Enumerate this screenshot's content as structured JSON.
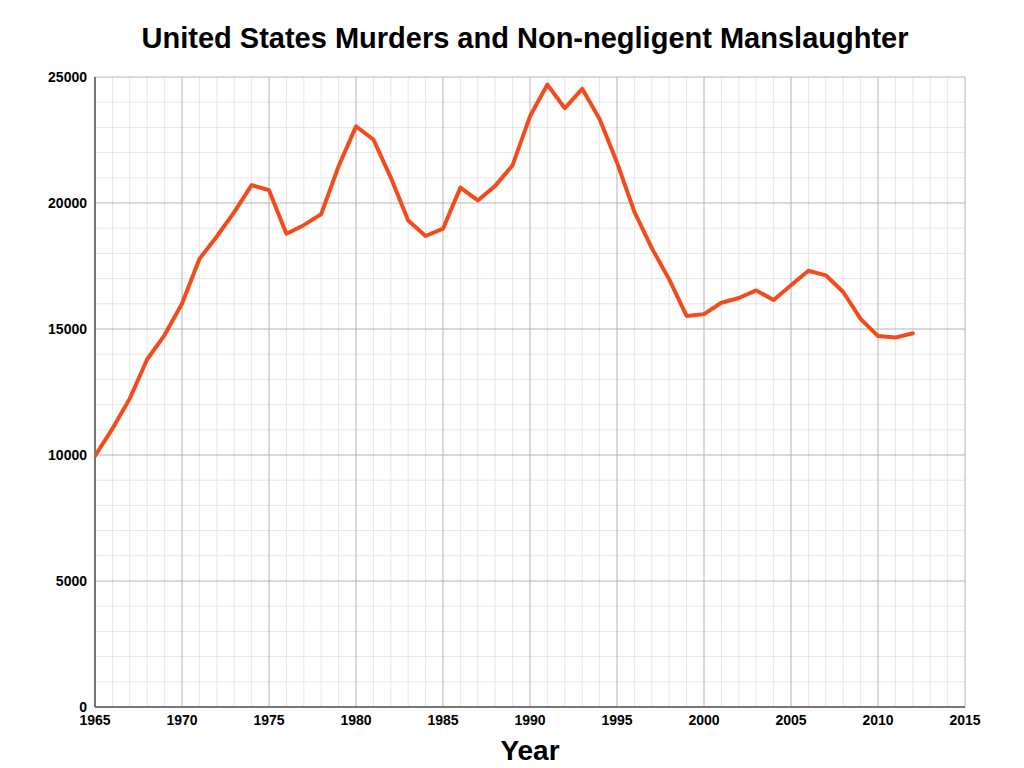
{
  "chart_data": {
    "type": "line",
    "title": "United States Murders and Non-negligent Manslaughter",
    "x_label": "Year",
    "x": [
      1965,
      1966,
      1967,
      1968,
      1969,
      1970,
      1971,
      1972,
      1973,
      1974,
      1975,
      1976,
      1977,
      1978,
      1979,
      1980,
      1981,
      1982,
      1983,
      1984,
      1985,
      1986,
      1987,
      1988,
      1989,
      1990,
      1991,
      1992,
      1993,
      1994,
      1995,
      1996,
      1997,
      1998,
      1999,
      2000,
      2001,
      2002,
      2003,
      2004,
      2005,
      2006,
      2007,
      2008,
      2009,
      2010,
      2011,
      2012
    ],
    "series": [
      {
        "name": "Murders and Non-negligent Manslaughter",
        "color": "#f24c1c",
        "values": [
          9960,
          11040,
          12240,
          13800,
          14760,
          16000,
          17780,
          18670,
          19640,
          20710,
          20510,
          18780,
          19120,
          19560,
          21460,
          23040,
          22520,
          21010,
          19310,
          18690,
          18980,
          20610,
          20100,
          20680,
          21500,
          23440,
          24700,
          23760,
          24530,
          23330,
          21610,
          19650,
          18210,
          16970,
          15520,
          15590,
          16040,
          16230,
          16530,
          16150,
          16740,
          17310,
          17130,
          16470,
          15400,
          14720,
          14660,
          14830
        ]
      }
    ],
    "xlim": [
      1965,
      2015
    ],
    "xticks": [
      1965,
      1970,
      1975,
      1980,
      1985,
      1990,
      1995,
      2000,
      2005,
      2010,
      2015
    ],
    "ylim": [
      0,
      25000
    ],
    "yticks": [
      0,
      5000,
      10000,
      15000,
      20000,
      25000
    ],
    "grid": true
  }
}
